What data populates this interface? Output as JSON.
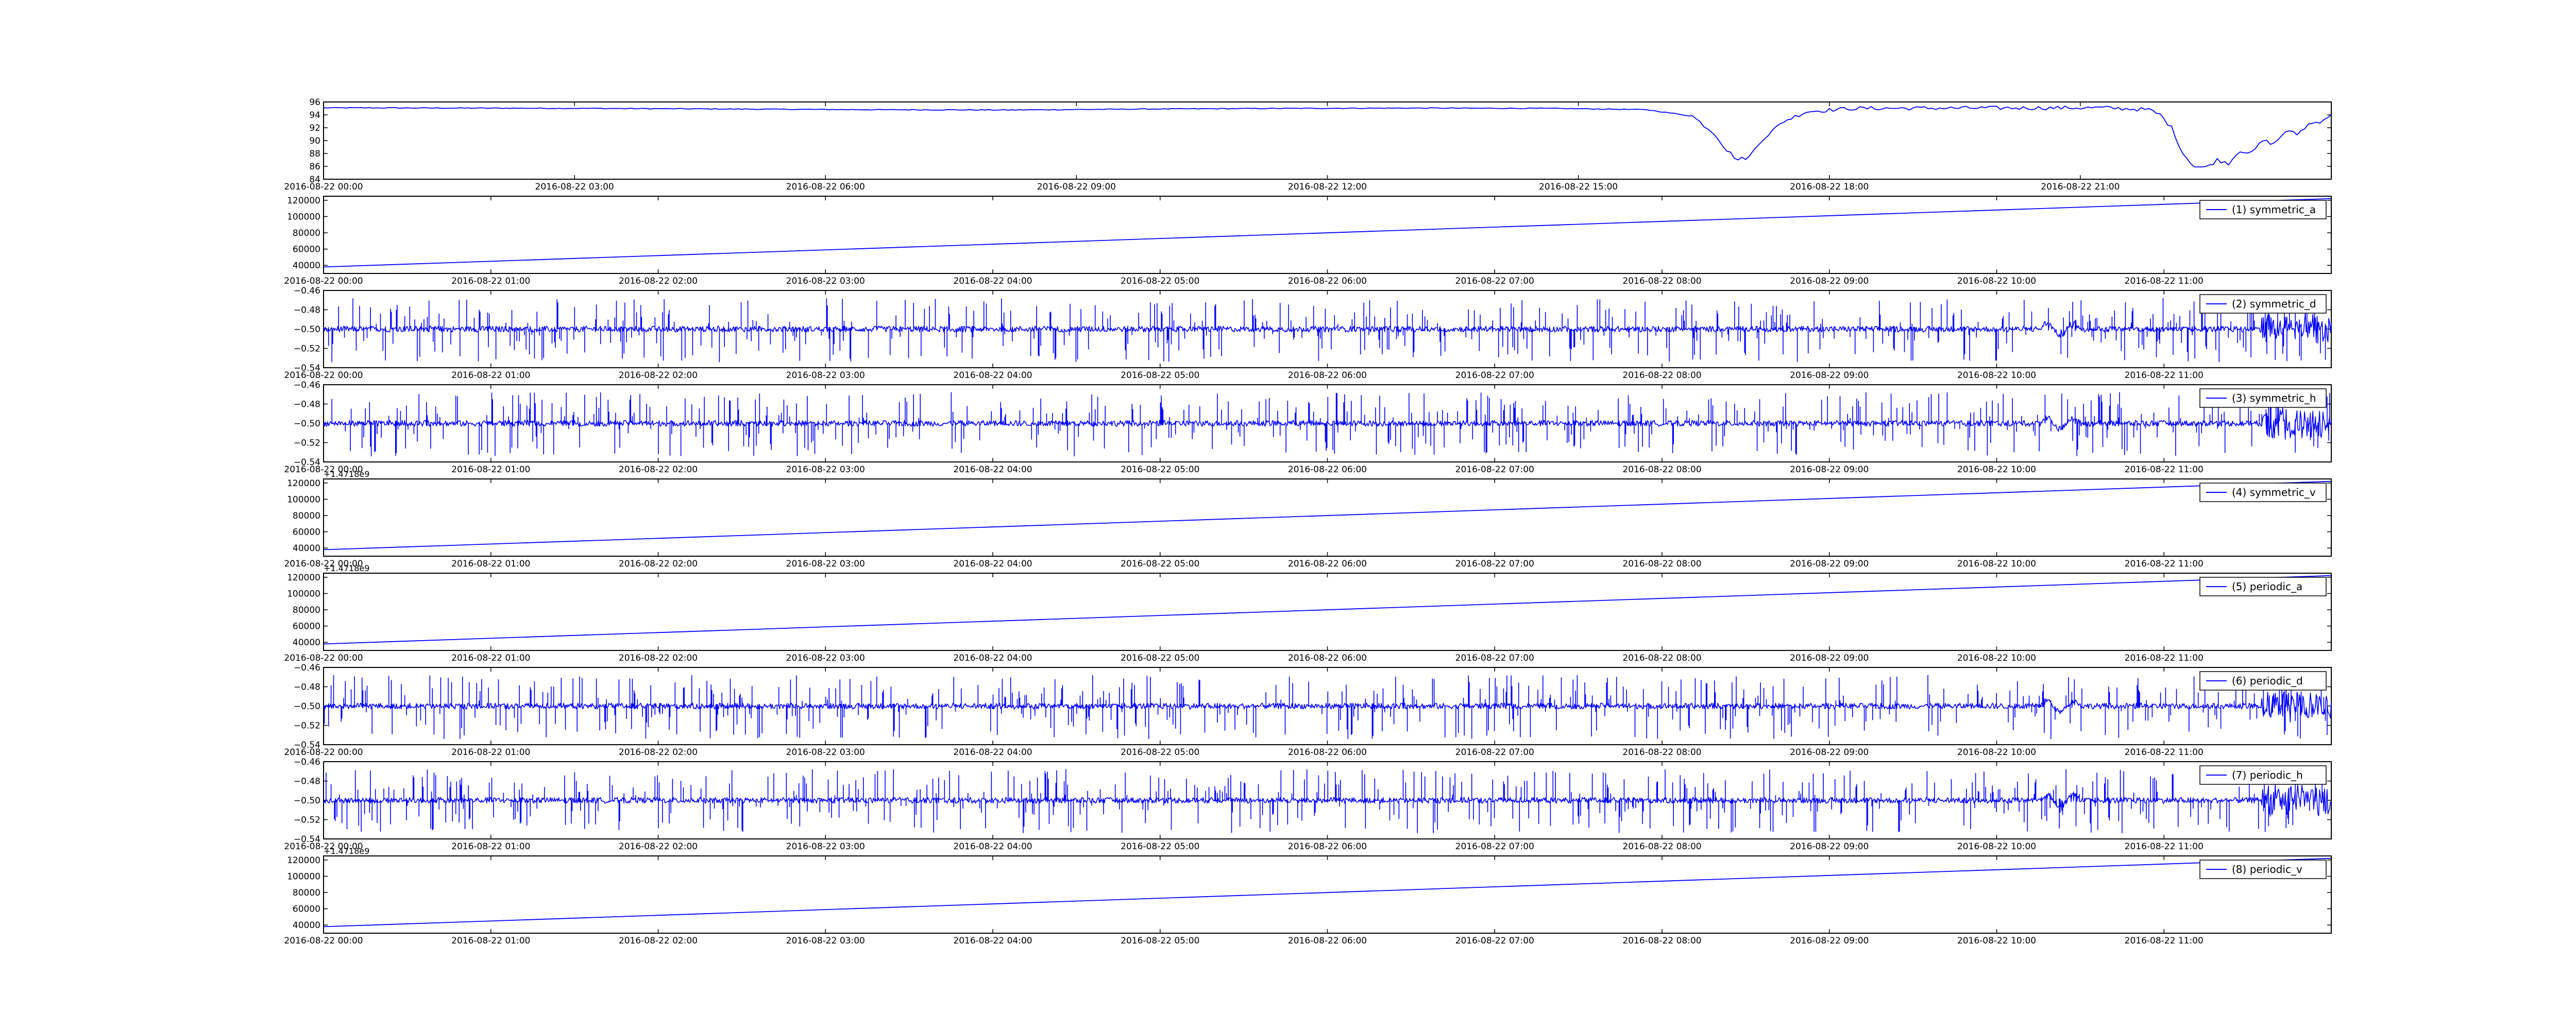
{
  "colors": {
    "line": "#0000ff",
    "axes": "#000000",
    "background": "#ffffff"
  },
  "chart_data": [
    {
      "type": "line",
      "title": "",
      "legend": "",
      "x_ticks": [
        "2016-08-22 00:00",
        "2016-08-22 03:00",
        "2016-08-22 06:00",
        "2016-08-22 09:00",
        "2016-08-22 12:00",
        "2016-08-22 15:00",
        "2016-08-22 18:00",
        "2016-08-22 21:00"
      ],
      "x_offset_label": "",
      "ylim": [
        84,
        96
      ],
      "y_ticks": [
        "84",
        "86",
        "88",
        "90",
        "92",
        "94",
        "96"
      ],
      "trace": [
        [
          0,
          95.1
        ],
        [
          6,
          95.05
        ],
        [
          12,
          95.0
        ],
        [
          18,
          94.9
        ],
        [
          24,
          94.8
        ],
        [
          30,
          94.75
        ],
        [
          36,
          94.9
        ],
        [
          42,
          95.0
        ],
        [
          48,
          95.05
        ],
        [
          54,
          95.0
        ],
        [
          58,
          94.8
        ],
        [
          60,
          93.8
        ],
        [
          61,
          91.0
        ],
        [
          61.5,
          88.5
        ],
        [
          62,
          87.0
        ],
        [
          62.5,
          87.5
        ],
        [
          63,
          90.0
        ],
        [
          64,
          93.0
        ],
        [
          65,
          94.5
        ],
        [
          67,
          95.0
        ],
        [
          72,
          95.05
        ],
        [
          78,
          95.1
        ],
        [
          80,
          94.8
        ],
        [
          80.5,
          94.0
        ],
        [
          81,
          92.0
        ],
        [
          81.5,
          88.0
        ],
        [
          82,
          86.0
        ],
        [
          82.5,
          85.8
        ],
        [
          83,
          87.0
        ],
        [
          83.5,
          86.5
        ],
        [
          84,
          88.5
        ],
        [
          84.5,
          88.0
        ],
        [
          85,
          90.0
        ],
        [
          85.5,
          89.5
        ],
        [
          86,
          91.5
        ],
        [
          86.5,
          91.0
        ],
        [
          87,
          92.5
        ],
        [
          87.5,
          93.0
        ],
        [
          88,
          94.0
        ]
      ]
    },
    {
      "type": "line",
      "legend": "(1) symmetric_a",
      "x_ticks": [
        "2016-08-22 00:00",
        "2016-08-22 01:00",
        "2016-08-22 02:00",
        "2016-08-22 03:00",
        "2016-08-22 04:00",
        "2016-08-22 05:00",
        "2016-08-22 06:00",
        "2016-08-22 07:00",
        "2016-08-22 08:00",
        "2016-08-22 09:00",
        "2016-08-22 10:00",
        "2016-08-22 11:00"
      ],
      "x_offset_label": "",
      "ylim": [
        30000,
        125000
      ],
      "y_ticks": [
        "40000",
        "60000",
        "80000",
        "100000",
        "120000"
      ],
      "trace": [
        [
          0,
          38000
        ],
        [
          100,
          122000
        ]
      ]
    },
    {
      "type": "line",
      "legend": "(2) symmetric_d",
      "x_ticks": [
        "2016-08-22 00:00",
        "2016-08-22 01:00",
        "2016-08-22 02:00",
        "2016-08-22 03:00",
        "2016-08-22 04:00",
        "2016-08-22 05:00",
        "2016-08-22 06:00",
        "2016-08-22 07:00",
        "2016-08-22 08:00",
        "2016-08-22 09:00",
        "2016-08-22 10:00",
        "2016-08-22 11:00"
      ],
      "x_offset_label": "",
      "ylim": [
        -0.54,
        -0.46
      ],
      "y_ticks": [
        "−0.54",
        "−0.52",
        "−0.50",
        "−0.48",
        "−0.46"
      ],
      "trace": "signal"
    },
    {
      "type": "line",
      "legend": "(3) symmetric_h",
      "x_ticks": [
        "2016-08-22 00:00",
        "2016-08-22 01:00",
        "2016-08-22 02:00",
        "2016-08-22 03:00",
        "2016-08-22 04:00",
        "2016-08-22 05:00",
        "2016-08-22 06:00",
        "2016-08-22 07:00",
        "2016-08-22 08:00",
        "2016-08-22 09:00",
        "2016-08-22 10:00",
        "2016-08-22 11:00"
      ],
      "x_offset_label": "",
      "ylim": [
        -0.54,
        -0.46
      ],
      "y_ticks": [
        "−0.54",
        "−0.52",
        "−0.50",
        "−0.48",
        "−0.46"
      ],
      "trace": "signal"
    },
    {
      "type": "line",
      "legend": "(4) symmetric_v",
      "x_ticks": [
        "2016-08-22 00:00",
        "2016-08-22 01:00",
        "2016-08-22 02:00",
        "2016-08-22 03:00",
        "2016-08-22 04:00",
        "2016-08-22 05:00",
        "2016-08-22 06:00",
        "2016-08-22 07:00",
        "2016-08-22 08:00",
        "2016-08-22 09:00",
        "2016-08-22 10:00",
        "2016-08-22 11:00"
      ],
      "x_offset_label": "+1.4718e9",
      "ylim": [
        30000,
        125000
      ],
      "y_ticks": [
        "40000",
        "60000",
        "80000",
        "100000",
        "120000"
      ],
      "trace": [
        [
          0,
          38000
        ],
        [
          100,
          122000
        ]
      ]
    },
    {
      "type": "line",
      "legend": "(5) periodic_a",
      "x_ticks": [
        "2016-08-22 00:00",
        "2016-08-22 01:00",
        "2016-08-22 02:00",
        "2016-08-22 03:00",
        "2016-08-22 04:00",
        "2016-08-22 05:00",
        "2016-08-22 06:00",
        "2016-08-22 07:00",
        "2016-08-22 08:00",
        "2016-08-22 09:00",
        "2016-08-22 10:00",
        "2016-08-22 11:00"
      ],
      "x_offset_label": "+1.4718e9",
      "ylim": [
        30000,
        125000
      ],
      "y_ticks": [
        "40000",
        "60000",
        "80000",
        "100000",
        "120000"
      ],
      "trace": [
        [
          0,
          38000
        ],
        [
          100,
          122000
        ]
      ]
    },
    {
      "type": "line",
      "legend": "(6) periodic_d",
      "x_ticks": [
        "2016-08-22 00:00",
        "2016-08-22 01:00",
        "2016-08-22 02:00",
        "2016-08-22 03:00",
        "2016-08-22 04:00",
        "2016-08-22 05:00",
        "2016-08-22 06:00",
        "2016-08-22 07:00",
        "2016-08-22 08:00",
        "2016-08-22 09:00",
        "2016-08-22 10:00",
        "2016-08-22 11:00"
      ],
      "x_offset_label": "",
      "ylim": [
        -0.54,
        -0.46
      ],
      "y_ticks": [
        "−0.54",
        "−0.52",
        "−0.50",
        "−0.48",
        "−0.46"
      ],
      "trace": "signal"
    },
    {
      "type": "line",
      "legend": "(7) periodic_h",
      "x_ticks": [
        "2016-08-22 00:00",
        "2016-08-22 01:00",
        "2016-08-22 02:00",
        "2016-08-22 03:00",
        "2016-08-22 04:00",
        "2016-08-22 05:00",
        "2016-08-22 06:00",
        "2016-08-22 07:00",
        "2016-08-22 08:00",
        "2016-08-22 09:00",
        "2016-08-22 10:00",
        "2016-08-22 11:00"
      ],
      "x_offset_label": "",
      "ylim": [
        -0.54,
        -0.46
      ],
      "y_ticks": [
        "−0.54",
        "−0.52",
        "−0.50",
        "−0.48",
        "−0.46"
      ],
      "trace": "signal"
    },
    {
      "type": "line",
      "legend": "(8) periodic_v",
      "x_ticks": [
        "2016-08-22 00:00",
        "2016-08-22 01:00",
        "2016-08-22 02:00",
        "2016-08-22 03:00",
        "2016-08-22 04:00",
        "2016-08-22 05:00",
        "2016-08-22 06:00",
        "2016-08-22 07:00",
        "2016-08-22 08:00",
        "2016-08-22 09:00",
        "2016-08-22 10:00",
        "2016-08-22 11:00"
      ],
      "x_offset_label": "+1.4718e9",
      "ylim": [
        30000,
        125000
      ],
      "y_ticks": [
        "40000",
        "60000",
        "80000",
        "100000",
        "120000"
      ],
      "trace": [
        [
          0,
          38000
        ],
        [
          100,
          122000
        ]
      ]
    }
  ]
}
